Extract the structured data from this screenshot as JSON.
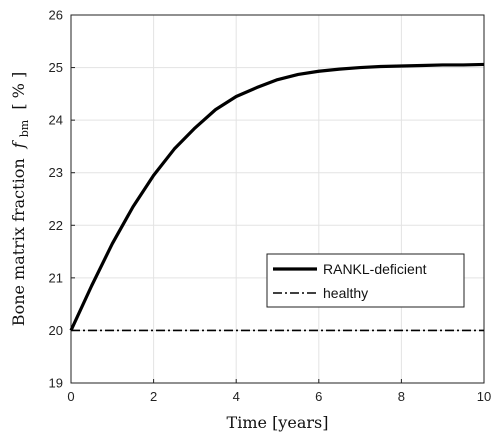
{
  "chart_data": {
    "type": "line",
    "xlabel": "Time [years]",
    "ylabel": "Bone matrix fraction",
    "ylabel_symbol": "f",
    "ylabel_subscript": "bm",
    "ylabel_unit": "[ % ]",
    "xlim": [
      0,
      10
    ],
    "ylim": [
      19,
      26
    ],
    "x_ticks": [
      0,
      2,
      4,
      6,
      8,
      10
    ],
    "y_ticks": [
      19,
      20,
      21,
      22,
      23,
      24,
      25,
      26
    ],
    "grid": true,
    "legend_position": "lower-right",
    "series": [
      {
        "name": "RANKL-deficient",
        "style": "solid",
        "color": "#000000",
        "x": [
          0,
          0.5,
          1,
          1.5,
          2,
          2.5,
          3,
          3.5,
          4,
          4.5,
          5,
          5.5,
          6,
          6.5,
          7,
          7.5,
          8,
          8.5,
          9,
          9.5,
          10
        ],
        "y": [
          20.0,
          20.85,
          21.65,
          22.35,
          22.95,
          23.45,
          23.85,
          24.2,
          24.45,
          24.62,
          24.77,
          24.87,
          24.93,
          24.97,
          25.0,
          25.02,
          25.03,
          25.04,
          25.05,
          25.05,
          25.06
        ]
      },
      {
        "name": "healthy",
        "style": "dashdot",
        "color": "#000000",
        "x": [
          0,
          10
        ],
        "y": [
          20.0,
          20.0
        ]
      }
    ]
  }
}
